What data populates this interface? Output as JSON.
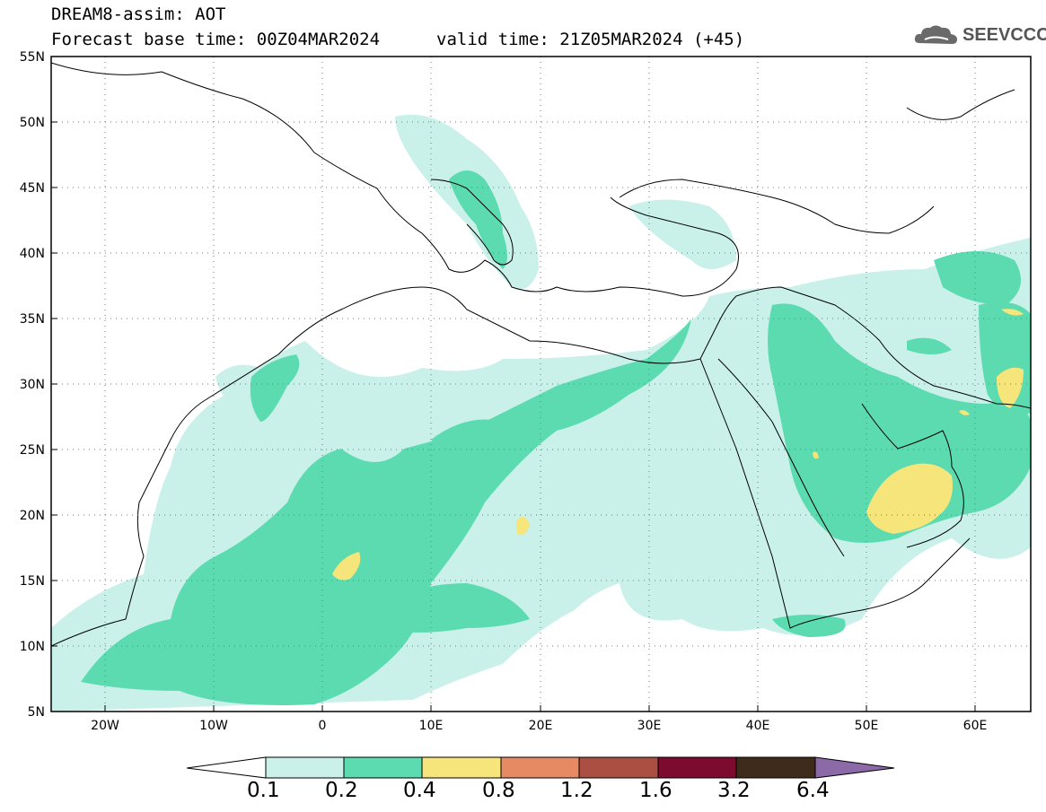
{
  "header": {
    "title": "DREAM8-assim: AOT",
    "base_time": "Forecast base time: 00Z04MAR2024",
    "valid_time": "valid time: 21Z05MAR2024 (+45)",
    "logo_text": "SEEVCCC"
  },
  "map": {
    "lat_labels": [
      "55N",
      "50N",
      "45N",
      "40N",
      "35N",
      "30N",
      "25N",
      "20N",
      "15N",
      "10N",
      "5N"
    ],
    "lon_labels": [
      "20W",
      "10W",
      "0",
      "10E",
      "20E",
      "30E",
      "40E",
      "50E",
      "60E"
    ],
    "colors": {
      "c1": "#c9f1ea",
      "c2": "#5ddbb0",
      "c3": "#f5e57a",
      "c4": "#e68a64",
      "c5": "#ac4f43",
      "c6": "#7d0a2f",
      "c7": "#3e2b1c",
      "c8": "#8c6aa8"
    }
  },
  "colorbar": {
    "labels": [
      "0.1",
      "0.2",
      "0.4",
      "0.8",
      "1.2",
      "1.6",
      "3.2",
      "6.4"
    ]
  }
}
